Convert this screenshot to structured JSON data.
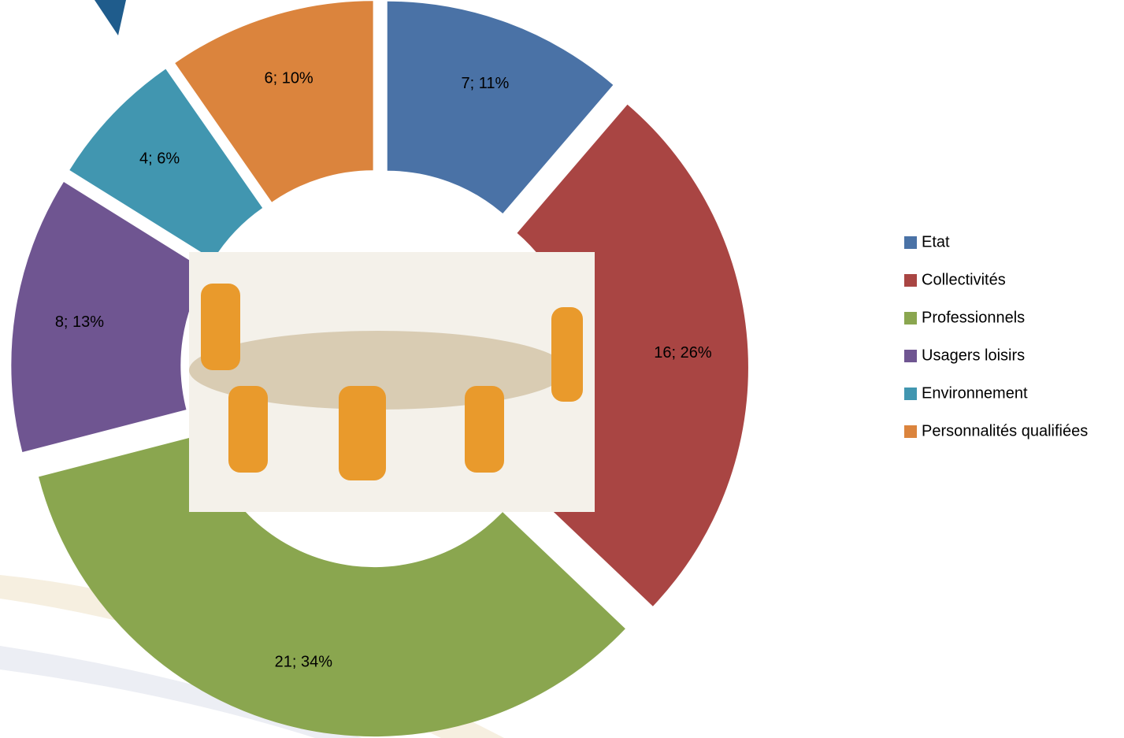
{
  "chart_data": {
    "type": "donut",
    "categories": [
      "Etat",
      "Collectivités",
      "Professionnels",
      "Usagers loisirs",
      "Environnement",
      "Personnalités qualifiées"
    ],
    "values": [
      7,
      16,
      21,
      8,
      4,
      6
    ],
    "value_labels": [
      "7; 11%",
      "16; 26%",
      "21; 34%",
      "8; 13%",
      "4; 6%",
      "6; 10%"
    ],
    "colors": [
      "#4a72a6",
      "#a94543",
      "#8aa64f",
      "#6f5591",
      "#4196b0",
      "#db843d"
    ],
    "legend": "right"
  }
}
